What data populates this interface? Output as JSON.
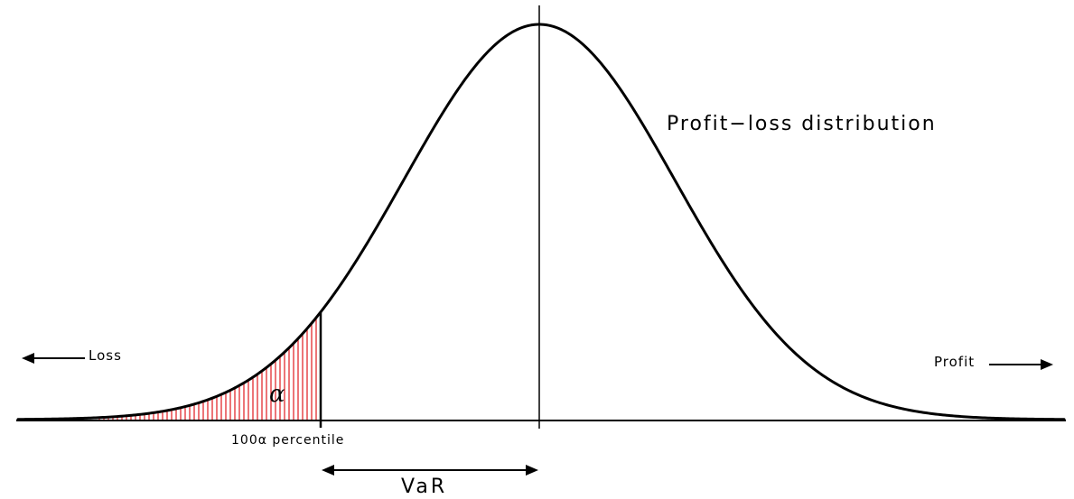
{
  "labels": {
    "distribution": "Profit−loss distribution",
    "loss": "Loss",
    "profit": "Profit",
    "percentile": "100α  percentile",
    "var": "VaR",
    "alpha": "α"
  },
  "colors": {
    "curve": "#000000",
    "hatch": "#e0191f",
    "background": "#ffffff"
  }
}
